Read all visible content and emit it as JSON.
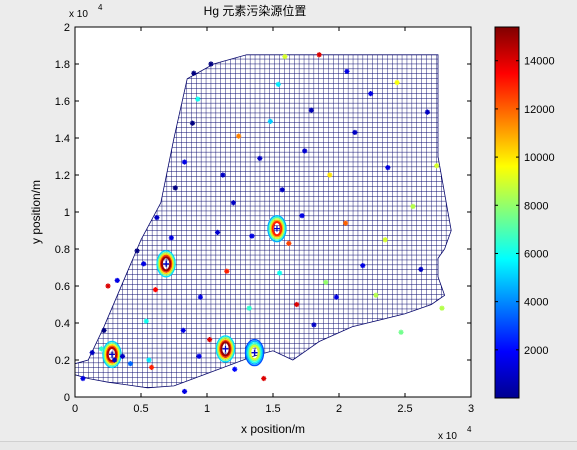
{
  "chart_data": {
    "type": "scatter",
    "title": "Hg 元素污染源位置",
    "xlabel": "x position/m",
    "ylabel": "y position/m",
    "xlim": [
      0,
      30000
    ],
    "ylim": [
      0,
      20000
    ],
    "x_ticks": [
      "0",
      "0.5",
      "1",
      "1.5",
      "2",
      "2.5",
      "3"
    ],
    "y_ticks": [
      "0",
      "0.2",
      "0.4",
      "0.6",
      "0.8",
      "1",
      "1.2",
      "1.4",
      "1.6",
      "1.8",
      "2"
    ],
    "x_exponent": "x 10",
    "y_exponent": "x 10",
    "exponent_power": "4",
    "grid": false,
    "colorbar": {
      "min": 0,
      "max": 15400,
      "ticks": [
        "2000",
        "4000",
        "6000",
        "8000",
        "10000",
        "12000",
        "14000"
      ],
      "tick_values": [
        2000,
        4000,
        6000,
        8000,
        10000,
        12000,
        14000
      ],
      "colormap": "jet"
    },
    "region_outline": [
      [
        0,
        1800
      ],
      [
        1000,
        2000
      ],
      [
        2200,
        3800
      ],
      [
        5000,
        8500
      ],
      [
        6500,
        10500
      ],
      [
        7500,
        14000
      ],
      [
        8500,
        17200
      ],
      [
        10500,
        18000
      ],
      [
        13000,
        18500
      ],
      [
        16000,
        18500
      ],
      [
        19000,
        18500
      ],
      [
        27500,
        18500
      ],
      [
        27500,
        16500
      ],
      [
        27500,
        13000
      ],
      [
        28500,
        9000
      ],
      [
        28000,
        8000
      ],
      [
        27500,
        7500
      ],
      [
        27500,
        6500
      ],
      [
        28000,
        5500
      ],
      [
        27000,
        5000
      ],
      [
        25000,
        4500
      ],
      [
        21000,
        3800
      ],
      [
        18500,
        3000
      ],
      [
        17500,
        2500
      ],
      [
        16500,
        2000
      ],
      [
        15000,
        2500
      ],
      [
        13500,
        2200
      ],
      [
        12000,
        1800
      ],
      [
        9000,
        1000
      ],
      [
        7500,
        600
      ],
      [
        5500,
        500
      ],
      [
        2500,
        800
      ],
      [
        1000,
        1000
      ],
      [
        0,
        1200
      ]
    ],
    "pollution_sources": [
      {
        "x": 2800,
        "y": 2300,
        "level": 14500
      },
      {
        "x": 6900,
        "y": 7200,
        "level": 15000
      },
      {
        "x": 11400,
        "y": 2600,
        "level": 15000
      },
      {
        "x": 13600,
        "y": 2400,
        "level": 9000
      },
      {
        "x": 15300,
        "y": 9100,
        "level": 13000
      }
    ],
    "sample_points": [
      {
        "x": 3000,
        "y": 2000,
        "level": 1000
      },
      {
        "x": 4200,
        "y": 1800,
        "level": 3500
      },
      {
        "x": 5600,
        "y": 2000,
        "level": 5500
      },
      {
        "x": 5800,
        "y": 1600,
        "level": 13000
      },
      {
        "x": 2200,
        "y": 3600,
        "level": 0
      },
      {
        "x": 2500,
        "y": 6000,
        "level": 14000
      },
      {
        "x": 3200,
        "y": 6300,
        "level": 1500
      },
      {
        "x": 4700,
        "y": 7900,
        "level": 0
      },
      {
        "x": 5200,
        "y": 7200,
        "level": 1500
      },
      {
        "x": 6200,
        "y": 9700,
        "level": 1000
      },
      {
        "x": 6100,
        "y": 5800,
        "level": 13500
      },
      {
        "x": 5400,
        "y": 4100,
        "level": 6000
      },
      {
        "x": 7600,
        "y": 11300,
        "level": 0
      },
      {
        "x": 8300,
        "y": 12700,
        "level": 1500
      },
      {
        "x": 8900,
        "y": 14800,
        "level": 0
      },
      {
        "x": 9000,
        "y": 17500,
        "level": 0
      },
      {
        "x": 10300,
        "y": 18000,
        "level": 0
      },
      {
        "x": 9300,
        "y": 16100,
        "level": 6000
      },
      {
        "x": 12400,
        "y": 14100,
        "level": 11500
      },
      {
        "x": 12000,
        "y": 10500,
        "level": 1000
      },
      {
        "x": 10800,
        "y": 8900,
        "level": 1200
      },
      {
        "x": 11500,
        "y": 6800,
        "level": 13000
      },
      {
        "x": 9500,
        "y": 5400,
        "level": 1500
      },
      {
        "x": 8200,
        "y": 3600,
        "level": 1500
      },
      {
        "x": 10200,
        "y": 3100,
        "level": 14000
      },
      {
        "x": 9400,
        "y": 2200,
        "level": 1500
      },
      {
        "x": 12100,
        "y": 1500,
        "level": 2000
      },
      {
        "x": 14300,
        "y": 1000,
        "level": 14000
      },
      {
        "x": 15500,
        "y": 6700,
        "level": 6000
      },
      {
        "x": 16200,
        "y": 8300,
        "level": 12500
      },
      {
        "x": 15700,
        "y": 11200,
        "level": 1000
      },
      {
        "x": 17200,
        "y": 9800,
        "level": 1500
      },
      {
        "x": 17400,
        "y": 13300,
        "level": 1200
      },
      {
        "x": 17900,
        "y": 15500,
        "level": 800
      },
      {
        "x": 18500,
        "y": 18500,
        "level": 14000
      },
      {
        "x": 15900,
        "y": 18400,
        "level": 9000
      },
      {
        "x": 15400,
        "y": 16900,
        "level": 5500
      },
      {
        "x": 14800,
        "y": 14900,
        "level": 5000
      },
      {
        "x": 14000,
        "y": 12900,
        "level": 1000
      },
      {
        "x": 19300,
        "y": 12000,
        "level": 10000
      },
      {
        "x": 20500,
        "y": 9400,
        "level": 12000
      },
      {
        "x": 21800,
        "y": 7100,
        "level": 1500
      },
      {
        "x": 23500,
        "y": 8500,
        "level": 9000
      },
      {
        "x": 22800,
        "y": 5500,
        "level": 8500
      },
      {
        "x": 24700,
        "y": 3500,
        "level": 7500
      },
      {
        "x": 26200,
        "y": 6900,
        "level": 1000
      },
      {
        "x": 25600,
        "y": 10300,
        "level": 8500
      },
      {
        "x": 26700,
        "y": 15400,
        "level": 1000
      },
      {
        "x": 24400,
        "y": 17000,
        "level": 9500
      },
      {
        "x": 22400,
        "y": 16400,
        "level": 1500
      },
      {
        "x": 21200,
        "y": 14300,
        "level": 1000
      },
      {
        "x": 27400,
        "y": 12500,
        "level": 9000
      },
      {
        "x": 27800,
        "y": 4800,
        "level": 8500
      },
      {
        "x": 19800,
        "y": 5400,
        "level": 1500
      },
      {
        "x": 18100,
        "y": 3900,
        "level": 1000
      },
      {
        "x": 13200,
        "y": 4800,
        "level": 6500
      },
      {
        "x": 16800,
        "y": 5000,
        "level": 14000
      },
      {
        "x": 8300,
        "y": 300,
        "level": 1500
      },
      {
        "x": 600,
        "y": 1000,
        "level": 1500
      },
      {
        "x": 1300,
        "y": 2400,
        "level": 1000
      },
      {
        "x": 2000,
        "y": 2600,
        "level": 6500
      },
      {
        "x": 3600,
        "y": 2200,
        "level": 1000
      },
      {
        "x": 7300,
        "y": 8600,
        "level": 1500
      },
      {
        "x": 13400,
        "y": 8700,
        "level": 1500
      },
      {
        "x": 19000,
        "y": 6200,
        "level": 8000
      },
      {
        "x": 11200,
        "y": 12000,
        "level": 1000
      },
      {
        "x": 20600,
        "y": 17600,
        "level": 1500
      },
      {
        "x": 23700,
        "y": 12400,
        "level": 1500
      }
    ]
  }
}
